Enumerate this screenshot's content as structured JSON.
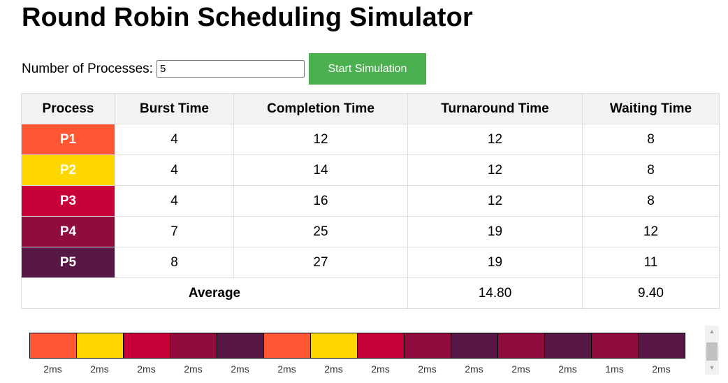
{
  "title": "Round Robin Scheduling Simulator",
  "controls": {
    "process_count_label": "Number of Processes:",
    "process_count_value": "5",
    "start_button_label": "Start Simulation"
  },
  "table": {
    "headers": [
      "Process",
      "Burst Time",
      "Completion Time",
      "Turnaround Time",
      "Waiting Time"
    ],
    "rows": [
      {
        "process": "P1",
        "burst": "4",
        "completion": "12",
        "turnaround": "12",
        "waiting": "8",
        "color": "#ff5733"
      },
      {
        "process": "P2",
        "burst": "4",
        "completion": "14",
        "turnaround": "12",
        "waiting": "8",
        "color": "#ffd700"
      },
      {
        "process": "P3",
        "burst": "4",
        "completion": "16",
        "turnaround": "12",
        "waiting": "8",
        "color": "#c70039"
      },
      {
        "process": "P4",
        "burst": "7",
        "completion": "25",
        "turnaround": "19",
        "waiting": "12",
        "color": "#900c3f"
      },
      {
        "process": "P5",
        "burst": "8",
        "completion": "27",
        "turnaround": "19",
        "waiting": "11",
        "color": "#581845"
      }
    ],
    "average": {
      "label": "Average",
      "turnaround": "14.80",
      "waiting": "9.40"
    }
  },
  "gantt": [
    {
      "color": "#ff5733",
      "label": "2ms"
    },
    {
      "color": "#ffd700",
      "label": "2ms"
    },
    {
      "color": "#c70039",
      "label": "2ms"
    },
    {
      "color": "#900c3f",
      "label": "2ms"
    },
    {
      "color": "#581845",
      "label": "2ms"
    },
    {
      "color": "#ff5733",
      "label": "2ms"
    },
    {
      "color": "#ffd700",
      "label": "2ms"
    },
    {
      "color": "#c70039",
      "label": "2ms"
    },
    {
      "color": "#900c3f",
      "label": "2ms"
    },
    {
      "color": "#581845",
      "label": "2ms"
    },
    {
      "color": "#900c3f",
      "label": "2ms"
    },
    {
      "color": "#581845",
      "label": "2ms"
    },
    {
      "color": "#900c3f",
      "label": "1ms"
    },
    {
      "color": "#581845",
      "label": "2ms"
    }
  ],
  "icons": {
    "scroll_up": "scroll-up-arrow-icon",
    "scroll_down": "scroll-down-arrow-icon"
  }
}
